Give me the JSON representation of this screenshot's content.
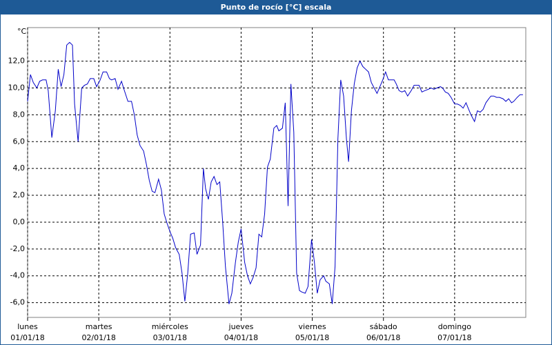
{
  "chart_data": {
    "type": "line",
    "title": "Punto de rocío [°C] escala",
    "ylabel": "°C",
    "color": "#0000c8",
    "grid": true,
    "xlim": [
      0,
      7
    ],
    "ylim": [
      -7.1,
      14.5
    ],
    "yticks": [
      {
        "value": -6,
        "label": "-6,0"
      },
      {
        "value": -4,
        "label": "-4,0"
      },
      {
        "value": -2,
        "label": "-2,0"
      },
      {
        "value": 0,
        "label": "0,0"
      },
      {
        "value": 2,
        "label": "2,0"
      },
      {
        "value": 4,
        "label": "4,0"
      },
      {
        "value": 6,
        "label": "6,0"
      },
      {
        "value": 8,
        "label": "8,0"
      },
      {
        "value": 10,
        "label": "10,0"
      },
      {
        "value": 12,
        "label": "12,0"
      }
    ],
    "xticks": [
      {
        "value": 0,
        "label": "lunes"
      },
      {
        "value": 1,
        "label": "martes"
      },
      {
        "value": 2,
        "label": "miércoles"
      },
      {
        "value": 3,
        "label": "jueves"
      },
      {
        "value": 4,
        "label": "viernes"
      },
      {
        "value": 5,
        "label": "sábado"
      },
      {
        "value": 6,
        "label": "domingo"
      }
    ],
    "xtick_dates": [
      "01/01/18",
      "02/01/18",
      "03/01/18",
      "04/01/18",
      "05/01/18",
      "06/01/18",
      "07/01/18"
    ],
    "x": [
      0,
      0.04,
      0.08,
      0.13,
      0.17,
      0.21,
      0.26,
      0.29,
      0.34,
      0.39,
      0.43,
      0.47,
      0.51,
      0.55,
      0.59,
      0.63,
      0.66,
      0.71,
      0.76,
      0.8,
      0.84,
      0.88,
      0.93,
      0.97,
      1.02,
      1.06,
      1.11,
      1.15,
      1.18,
      1.23,
      1.27,
      1.32,
      1.36,
      1.41,
      1.46,
      1.5,
      1.54,
      1.58,
      1.63,
      1.67,
      1.71,
      1.75,
      1.79,
      1.84,
      1.88,
      1.92,
      1.96,
      2.0,
      2.04,
      2.08,
      2.13,
      2.17,
      2.21,
      2.25,
      2.29,
      2.34,
      2.38,
      2.43,
      2.47,
      2.5,
      2.54,
      2.58,
      2.62,
      2.66,
      2.7,
      2.74,
      2.78,
      2.83,
      2.87,
      2.92,
      2.96,
      3.0,
      3.05,
      3.09,
      3.13,
      3.17,
      3.21,
      3.25,
      3.29,
      3.33,
      3.37,
      3.41,
      3.46,
      3.5,
      3.53,
      3.58,
      3.62,
      3.66,
      3.7,
      3.74,
      3.78,
      3.82,
      3.85,
      3.9,
      3.94,
      3.99,
      4.03,
      4.07,
      4.11,
      4.16,
      4.19,
      4.24,
      4.28,
      4.32,
      4.36,
      4.4,
      4.44,
      4.48,
      4.51,
      4.55,
      4.59,
      4.63,
      4.67,
      4.71,
      4.75,
      4.79,
      4.83,
      4.86,
      4.91,
      4.95,
      4.99,
      5.03,
      5.07,
      5.11,
      5.15,
      5.18,
      5.22,
      5.26,
      5.3,
      5.34,
      5.39,
      5.43,
      5.47,
      5.5,
      5.54,
      5.58,
      5.63,
      5.67,
      5.71,
      5.75,
      5.8,
      5.83,
      5.87,
      5.91,
      5.95,
      6.0,
      6.04,
      6.08,
      6.12,
      6.16,
      6.19,
      6.23,
      6.28,
      6.32,
      6.36,
      6.4,
      6.44,
      6.48,
      6.51,
      6.55,
      6.59,
      6.63,
      6.68,
      6.72,
      6.76,
      6.8,
      6.83,
      6.88,
      6.92,
      6.96
    ],
    "values": [
      9.0,
      11.0,
      10.4,
      10.0,
      10.5,
      10.6,
      10.6,
      9.8,
      6.3,
      8.3,
      11.4,
      10.1,
      11.0,
      13.2,
      13.4,
      13.2,
      8.8,
      6.0,
      10.0,
      10.2,
      10.3,
      10.7,
      10.7,
      10.1,
      10.6,
      11.2,
      11.2,
      10.7,
      10.6,
      10.7,
      9.9,
      10.5,
      9.8,
      9.0,
      9.0,
      8.0,
      6.5,
      5.7,
      5.3,
      4.3,
      3.1,
      2.3,
      2.2,
      3.2,
      2.4,
      0.6,
      -0.1,
      -0.7,
      -1.2,
      -1.9,
      -2.4,
      -3.8,
      -5.9,
      -3.8,
      -0.9,
      -0.8,
      -2.4,
      -1.7,
      4.0,
      2.5,
      1.7,
      3.0,
      3.4,
      2.8,
      3.0,
      0.1,
      -3.3,
      -6.1,
      -5.3,
      -3.0,
      -1.5,
      -0.5,
      -3.0,
      -4.0,
      -4.6,
      -4.1,
      -3.4,
      -0.9,
      -1.1,
      0.6,
      4.1,
      4.7,
      7.0,
      7.2,
      6.8,
      7.0,
      8.9,
      1.2,
      10.3,
      6.7,
      -3.8,
      -5.1,
      -5.2,
      -5.3,
      -4.8,
      -1.3,
      -3.0,
      -5.3,
      -4.3,
      -4.0,
      -4.4,
      -4.6,
      -6.1,
      -3.3,
      6.2,
      10.6,
      9.4,
      6.2,
      4.5,
      8.3,
      10.3,
      11.5,
      12.0,
      11.6,
      11.4,
      11.2,
      10.4,
      10.1,
      9.6,
      10.1,
      10.6,
      11.2,
      10.6,
      10.6,
      10.6,
      10.3,
      9.8,
      9.7,
      9.8,
      9.4,
      9.8,
      10.2,
      10.2,
      10.2,
      9.7,
      9.8,
      9.9,
      10.0,
      9.9,
      10.0,
      10.1,
      10.0,
      9.7,
      9.6,
      9.3,
      8.8,
      8.8,
      8.7,
      8.5,
      8.9,
      8.5,
      8.0,
      7.5,
      8.3,
      8.2,
      8.4,
      8.9,
      9.2,
      9.4,
      9.4,
      9.3,
      9.3,
      9.2,
      9.0,
      9.2,
      8.9,
      9.0,
      9.3,
      9.5,
      9.5
    ]
  }
}
